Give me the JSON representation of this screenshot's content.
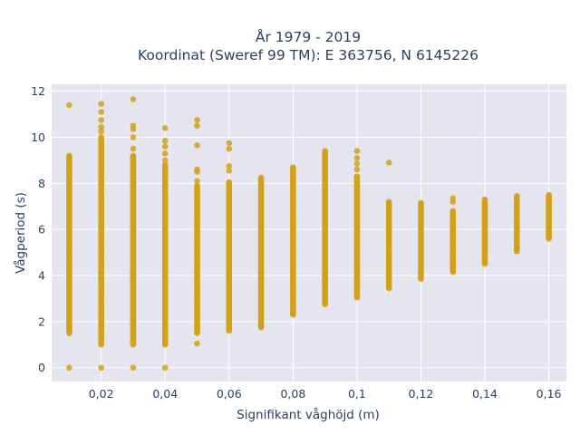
{
  "chart_data": {
    "type": "scatter",
    "title_line1": "År 1979 - 2019",
    "title_line2": "Koordinat (Sweref 99 TM): E 363756, N 6145226",
    "xlabel": "Signifikant våghöjd (m)",
    "ylabel": "Vågperiod (s)",
    "xlim": [
      0.0045,
      0.1655
    ],
    "ylim": [
      -0.6,
      12.3
    ],
    "x_ticks": [
      {
        "value": 0.02,
        "label": "0,02"
      },
      {
        "value": 0.04,
        "label": "0,04"
      },
      {
        "value": 0.06,
        "label": "0,06"
      },
      {
        "value": 0.08,
        "label": "0,08"
      },
      {
        "value": 0.1,
        "label": "0,1"
      },
      {
        "value": 0.12,
        "label": "0,12"
      },
      {
        "value": 0.14,
        "label": "0,14"
      },
      {
        "value": 0.16,
        "label": "0,16"
      }
    ],
    "y_ticks": [
      {
        "value": 0,
        "label": "0"
      },
      {
        "value": 2,
        "label": "2"
      },
      {
        "value": 4,
        "label": "4"
      },
      {
        "value": 6,
        "label": "6"
      },
      {
        "value": 8,
        "label": "8"
      },
      {
        "value": 10,
        "label": "10"
      },
      {
        "value": 12,
        "label": "12"
      }
    ],
    "grid": true,
    "colors": {
      "marker": "#d4a017",
      "plot_background": "#e5e5ef",
      "grid": "#ffffff",
      "text": "#2a3f5f"
    },
    "columns": [
      {
        "x": 0.01,
        "dense_range": [
          1.6,
          9.2
        ],
        "points": [
          0,
          11.4,
          9.0,
          8.5,
          2.0,
          1.8,
          1.5
        ]
      },
      {
        "x": 0.02,
        "dense_range": [
          1.0,
          10.0
        ],
        "points": [
          0,
          11.45,
          11.1,
          10.75,
          10.45,
          10.25
        ]
      },
      {
        "x": 0.03,
        "dense_range": [
          1.0,
          9.2
        ],
        "points": [
          0,
          11.65,
          10.5,
          10.35,
          10.0,
          9.5
        ]
      },
      {
        "x": 0.04,
        "dense_range": [
          1.0,
          8.8
        ],
        "points": [
          0,
          10.4,
          9.85,
          9.6,
          9.3,
          9.0
        ]
      },
      {
        "x": 0.05,
        "dense_range": [
          1.5,
          7.9
        ],
        "points": [
          1.05,
          10.75,
          10.5,
          9.65,
          8.6,
          8.5,
          8.1
        ]
      },
      {
        "x": 0.06,
        "dense_range": [
          1.6,
          8.05
        ],
        "points": [
          9.75,
          9.5,
          8.75,
          8.55
        ]
      },
      {
        "x": 0.07,
        "dense_range": [
          1.75,
          8.25
        ],
        "points": []
      },
      {
        "x": 0.08,
        "dense_range": [
          2.3,
          8.7
        ],
        "points": []
      },
      {
        "x": 0.09,
        "dense_range": [
          2.75,
          9.4
        ],
        "points": []
      },
      {
        "x": 0.1,
        "dense_range": [
          3.05,
          8.3
        ],
        "points": [
          9.4,
          9.1,
          8.85,
          8.6
        ]
      },
      {
        "x": 0.11,
        "dense_range": [
          3.45,
          7.2
        ],
        "points": [
          8.9
        ]
      },
      {
        "x": 0.12,
        "dense_range": [
          3.85,
          7.15
        ],
        "points": []
      },
      {
        "x": 0.13,
        "dense_range": [
          4.15,
          6.8
        ],
        "points": [
          7.35,
          7.2
        ]
      },
      {
        "x": 0.14,
        "dense_range": [
          4.5,
          7.3
        ],
        "points": []
      },
      {
        "x": 0.15,
        "dense_range": [
          5.05,
          7.45
        ],
        "points": []
      },
      {
        "x": 0.16,
        "dense_range": [
          5.6,
          7.5
        ],
        "points": []
      }
    ]
  }
}
